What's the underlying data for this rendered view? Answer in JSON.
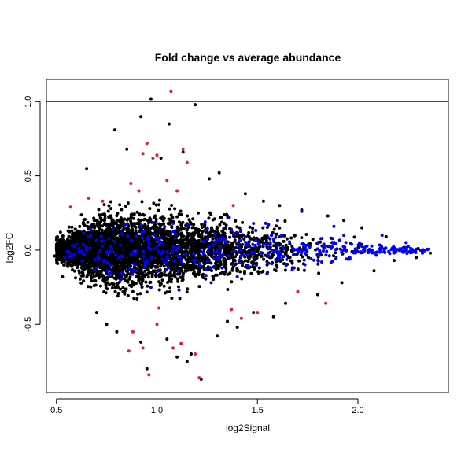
{
  "chart_data": {
    "type": "scatter",
    "title": "Fold change vs average abundance",
    "xlabel": "log2Signal",
    "ylabel": "log2FC",
    "xlim": [
      0.45,
      2.45
    ],
    "ylim": [
      -0.96,
      1.15
    ],
    "xticks": [
      0.5,
      1.0,
      1.5,
      2.0
    ],
    "xtick_labels": [
      "0.5",
      "1.0",
      "1.5",
      "2.0"
    ],
    "yticks": [
      -0.5,
      0.0,
      0.5,
      1.0
    ],
    "ytick_labels": [
      "-0.5",
      "0.0",
      "0.5",
      "1.0"
    ],
    "grid": false,
    "legend": "none",
    "reference_line": {
      "y": 1.0,
      "color": "#00008b"
    },
    "colors": {
      "background": "#ffffff",
      "significant": "#e41a3a",
      "highlighted": "#0000ff",
      "default": "#000000"
    },
    "series": [
      {
        "color": "#000000",
        "points": [
          [
            0.97,
            1.02
          ],
          [
            1.06,
            0.85
          ],
          [
            1.19,
            0.98
          ],
          [
            0.79,
            0.81
          ],
          [
            0.92,
            0.9
          ],
          [
            1.02,
            0.62
          ],
          [
            1.13,
            0.66
          ],
          [
            1.26,
            0.48
          ],
          [
            0.65,
            0.55
          ],
          [
            0.85,
            0.68
          ],
          [
            1.31,
            0.52
          ],
          [
            1.44,
            0.38
          ],
          [
            1.53,
            0.33
          ],
          [
            1.61,
            0.3
          ],
          [
            1.72,
            0.27
          ],
          [
            1.85,
            0.23
          ],
          [
            1.93,
            0.2
          ],
          [
            2.02,
            0.15
          ],
          [
            2.14,
            0.09
          ],
          [
            2.24,
            0.05
          ],
          [
            2.3,
            0.01
          ],
          [
            2.36,
            -0.02
          ],
          [
            2.29,
            -0.05
          ],
          [
            2.18,
            -0.07
          ],
          [
            0.52,
            0.12
          ],
          [
            0.5,
            0.07
          ],
          [
            0.49,
            -0.04
          ],
          [
            0.53,
            -0.18
          ],
          [
            1.22,
            -0.87
          ],
          [
            1.17,
            -0.7
          ],
          [
            0.95,
            -0.8
          ],
          [
            0.92,
            -0.62
          ],
          [
            0.8,
            -0.55
          ],
          [
            1.1,
            -0.72
          ],
          [
            1.3,
            -0.58
          ],
          [
            1.4,
            -0.52
          ],
          [
            1.58,
            -0.45
          ],
          [
            1.64,
            -0.36
          ],
          [
            1.8,
            -0.3
          ],
          [
            1.92,
            -0.22
          ],
          [
            2.08,
            -0.14
          ],
          [
            0.7,
            -0.42
          ],
          [
            0.75,
            -0.5
          ],
          [
            1.05,
            -0.6
          ],
          [
            1.15,
            -0.75
          ],
          [
            1.35,
            -0.48
          ],
          [
            1.48,
            -0.42
          ]
        ]
      },
      {
        "color": "#e41a3a",
        "points": [
          [
            1.07,
            1.07
          ],
          [
            0.93,
            0.65
          ],
          [
            0.98,
            0.62
          ],
          [
            1.0,
            0.64
          ],
          [
            1.13,
            0.68
          ],
          [
            1.15,
            0.59
          ],
          [
            0.95,
            0.72
          ],
          [
            1.05,
            0.47
          ],
          [
            0.87,
            0.45
          ],
          [
            0.91,
            0.4
          ],
          [
            0.57,
            0.29
          ],
          [
            0.66,
            0.35
          ],
          [
            0.73,
            0.33
          ],
          [
            1.1,
            0.4
          ],
          [
            1.38,
            0.3
          ],
          [
            0.96,
            -0.84
          ],
          [
            1.21,
            -0.86
          ],
          [
            0.93,
            -0.66
          ],
          [
            0.86,
            -0.68
          ],
          [
            1.08,
            -0.66
          ],
          [
            1.19,
            -0.7
          ],
          [
            1.12,
            -0.63
          ],
          [
            1.84,
            -0.36
          ],
          [
            1.42,
            -0.46
          ],
          [
            1.5,
            -0.42
          ],
          [
            1.37,
            -0.4
          ],
          [
            1.0,
            -0.5
          ],
          [
            0.88,
            -0.55
          ],
          [
            1.7,
            -0.28
          ],
          [
            1.01,
            -0.39
          ]
        ]
      },
      {
        "color": "#0000ff",
        "points": [
          [
            1.72,
            0.26
          ],
          [
            1.88,
            0.16
          ],
          [
            1.93,
            0.1
          ],
          [
            2.12,
            0.1
          ],
          [
            2.24,
            0.05
          ],
          [
            1.6,
            0.2
          ],
          [
            1.48,
            0.18
          ],
          [
            1.36,
            0.22
          ],
          [
            0.58,
            0.03
          ],
          [
            0.54,
            -0.05
          ],
          [
            0.7,
            -0.12
          ],
          [
            0.82,
            -0.2
          ],
          [
            0.97,
            -0.25
          ],
          [
            1.11,
            -0.27
          ],
          [
            1.27,
            -0.22
          ],
          [
            1.4,
            -0.18
          ],
          [
            1.55,
            -0.15
          ],
          [
            1.68,
            -0.12
          ],
          [
            1.82,
            -0.08
          ],
          [
            1.96,
            -0.05
          ],
          [
            1.24,
            0.19
          ],
          [
            1.08,
            0.18
          ],
          [
            0.92,
            0.17
          ],
          [
            0.78,
            0.14
          ],
          [
            0.67,
            0.1
          ],
          [
            1.45,
            0.05
          ],
          [
            1.6,
            -0.02
          ],
          [
            1.76,
            0.02
          ],
          [
            1.31,
            -0.05
          ],
          [
            1.0,
            0.02
          ]
        ]
      }
    ]
  }
}
